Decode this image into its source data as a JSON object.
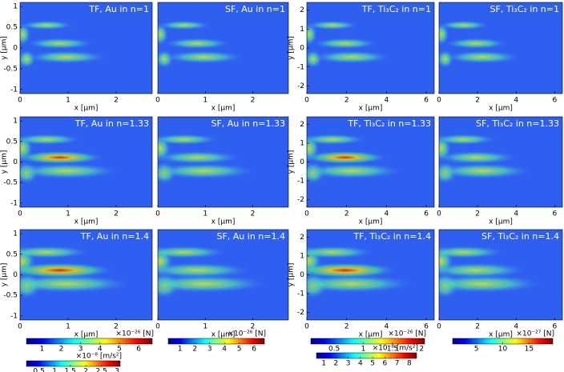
{
  "panels": [
    {
      "title": "TF, Au in n=1",
      "xlabel": "x [µm]",
      "ylabel": "y [µm]",
      "xlim": [
        0,
        2.75
      ],
      "ylim": [
        -1.1,
        1.1
      ],
      "xticks": [
        0,
        1,
        2
      ],
      "yticks": [
        1,
        0.5,
        0,
        -0.5,
        -1
      ]
    },
    {
      "title": "SF, Au in n=1",
      "xlabel": "x [µm]",
      "xlim": [
        0,
        2.75
      ],
      "ylim": [
        -1.1,
        1.1
      ],
      "xticks": [
        0,
        1,
        2
      ]
    },
    {
      "title": "TF, Ti₃C₂ in n=1",
      "xlabel": "x [µm]",
      "ylabel": "y [µm]",
      "xlim": [
        0,
        6.4
      ],
      "ylim": [
        -2.4,
        2.4
      ],
      "xticks": [
        0,
        2,
        4,
        6
      ],
      "yticks": [
        2,
        1,
        0,
        -1,
        -2
      ]
    },
    {
      "title": "SF, Ti₃C₂ in n=1",
      "xlabel": "x [µm]",
      "xlim": [
        0,
        6.4
      ],
      "ylim": [
        -2.4,
        2.4
      ],
      "xticks": [
        0,
        2,
        4,
        6
      ]
    },
    {
      "title": "TF, Au in n=1.33",
      "xlabel": "x [µm]",
      "ylabel": "y [µm]",
      "xlim": [
        0,
        2.75
      ],
      "ylim": [
        -1.1,
        1.1
      ],
      "xticks": [
        0,
        1,
        2
      ],
      "yticks": [
        1,
        0.5,
        0,
        -0.5,
        -1
      ]
    },
    {
      "title": "SF, Au in n=1.33",
      "xlabel": "x [µm]",
      "xlim": [
        0,
        2.75
      ],
      "ylim": [
        -1.1,
        1.1
      ],
      "xticks": [
        0,
        1,
        2
      ]
    },
    {
      "title": "TF, Ti₃C₂ in n=1.33",
      "xlabel": "x [µm]",
      "ylabel": "y [µm]",
      "xlim": [
        0,
        6.4
      ],
      "ylim": [
        -2.4,
        2.4
      ],
      "xticks": [
        0,
        2,
        4,
        6
      ],
      "yticks": [
        2,
        1,
        0,
        -1,
        -2
      ]
    },
    {
      "title": "SF, Ti₃C₂ in n=1.33",
      "xlabel": "x [µm]",
      "xlim": [
        0,
        6.4
      ],
      "ylim": [
        -2.4,
        2.4
      ],
      "xticks": [
        0,
        2,
        4,
        6
      ]
    },
    {
      "title": "TF, Au in n=1.4",
      "xlabel": "x [µm]",
      "ylabel": "y [µm]",
      "xlim": [
        0,
        2.75
      ],
      "ylim": [
        -1.1,
        1.1
      ],
      "xticks": [
        0,
        1,
        2
      ],
      "yticks": [
        1,
        0.5,
        0,
        -0.5,
        -1
      ]
    },
    {
      "title": "SF, Au in n=1.4",
      "xlabel": "x [µm]",
      "xlim": [
        0,
        2.75
      ],
      "ylim": [
        -1.1,
        1.1
      ],
      "xticks": [
        0,
        1,
        2
      ]
    },
    {
      "title": "TF, Ti₃C₂ in n=1.4",
      "xlabel": "x [µm]",
      "ylabel": "y [µm]",
      "xlim": [
        0,
        6.4
      ],
      "ylim": [
        -2.4,
        2.4
      ],
      "xticks": [
        0,
        2,
        4,
        6
      ],
      "yticks": [
        2,
        1,
        0,
        -1,
        -2
      ]
    },
    {
      "title": "SF, Ti₃C₂ in n=1.4",
      "xlabel": "x [µm]",
      "xlim": [
        0,
        6.4
      ],
      "ylim": [
        -2.4,
        2.4
      ],
      "xticks": [
        0,
        2,
        4,
        6
      ]
    }
  ],
  "colorbars": [
    {
      "label": "×10⁻²⁶ [N]",
      "lim": [
        0.2,
        6.7
      ],
      "ticks": [
        1,
        2,
        3,
        4,
        5,
        6
      ]
    },
    {
      "label": "×10⁻²⁶ [N]",
      "lim": [
        0.2,
        6.7
      ],
      "ticks": [
        1,
        2,
        3,
        4,
        5,
        6
      ]
    },
    {
      "label": "×10⁻⁸ [m/s²]",
      "lim": [
        0.1,
        3.1
      ],
      "ticks": [
        0.5,
        1,
        1.5,
        2,
        2.5,
        3
      ]
    },
    {
      "label": "×10⁻²⁶ [N]",
      "lim": [
        0.1,
        2.05
      ],
      "ticks": [
        0.5,
        1,
        1.5,
        2
      ]
    },
    {
      "label": "×10⁻⁸ [m/s²]",
      "lim": [
        0.4,
        8.6
      ],
      "ticks": [
        1,
        2,
        3,
        4,
        5,
        6,
        7,
        8
      ]
    },
    {
      "label": "×10⁻²⁷ [N]",
      "lim": [
        0.5,
        19.5
      ],
      "ticks": [
        5,
        10,
        15
      ]
    }
  ]
}
